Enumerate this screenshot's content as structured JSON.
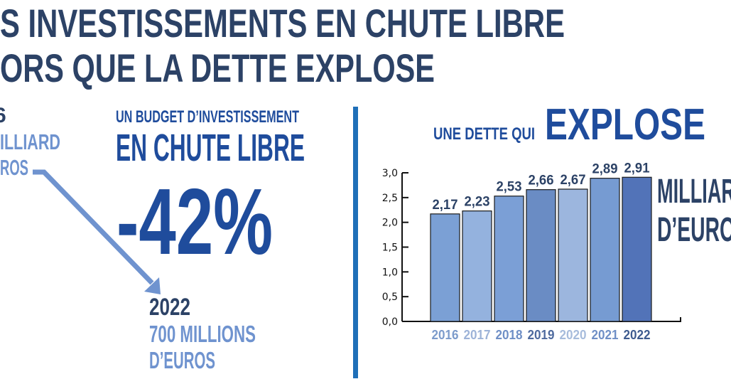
{
  "header": {
    "line1": "S INVESTISSEMENTS EN CHUTE LIBRE",
    "line2": "ORS QUE LA DETTE EXPLOSE"
  },
  "left_panel": {
    "start_year": "6",
    "start_value_line1": "ILLIARD",
    "start_value_line2": "ROS",
    "kicker": "UN BUDGET D’INVESTISSEMENT",
    "headline": "EN CHUTE LIBRE",
    "change": "-42%",
    "end_year": "2022",
    "end_value_line1": "700 MILLIONS",
    "end_value_line2": "D’EUROS"
  },
  "right_panel": {
    "title_small": "UNE DETTE QUI",
    "title_big": "EXPLOSE",
    "unit_line1": "MILLIAR",
    "unit_line2": "D’EURO"
  },
  "colors": {
    "navy": "#2c4266",
    "blue": "#1f4c9c",
    "light_blue": "#6f93cf",
    "divider": "#1f6fb8"
  },
  "chart_data": {
    "type": "bar",
    "categories": [
      "2016",
      "2017",
      "2018",
      "2019",
      "2020",
      "2021",
      "2022"
    ],
    "values": [
      2.17,
      2.23,
      2.53,
      2.66,
      2.67,
      2.89,
      2.91
    ],
    "value_labels": [
      "2,17",
      "2,23",
      "2,53",
      "2,66",
      "2,67",
      "2,89",
      "2,91"
    ],
    "bar_colors": [
      "#7ba0d5",
      "#94b2de",
      "#7b9fd6",
      "#6a8cc4",
      "#9cb6de",
      "#769bd2",
      "#5273b8"
    ],
    "label_colors": [
      "#7c9bcb",
      "#9db3d8",
      "#6f8fc6",
      "#4e6a9e",
      "#a7bcdc",
      "#6f8fc6",
      "#3e5b8f"
    ],
    "yticks": [
      "0,0",
      "0,5",
      "1,0",
      "1,5",
      "2,0",
      "2,5",
      "3,0"
    ],
    "ylim": [
      0,
      3.0
    ],
    "grid": false
  }
}
